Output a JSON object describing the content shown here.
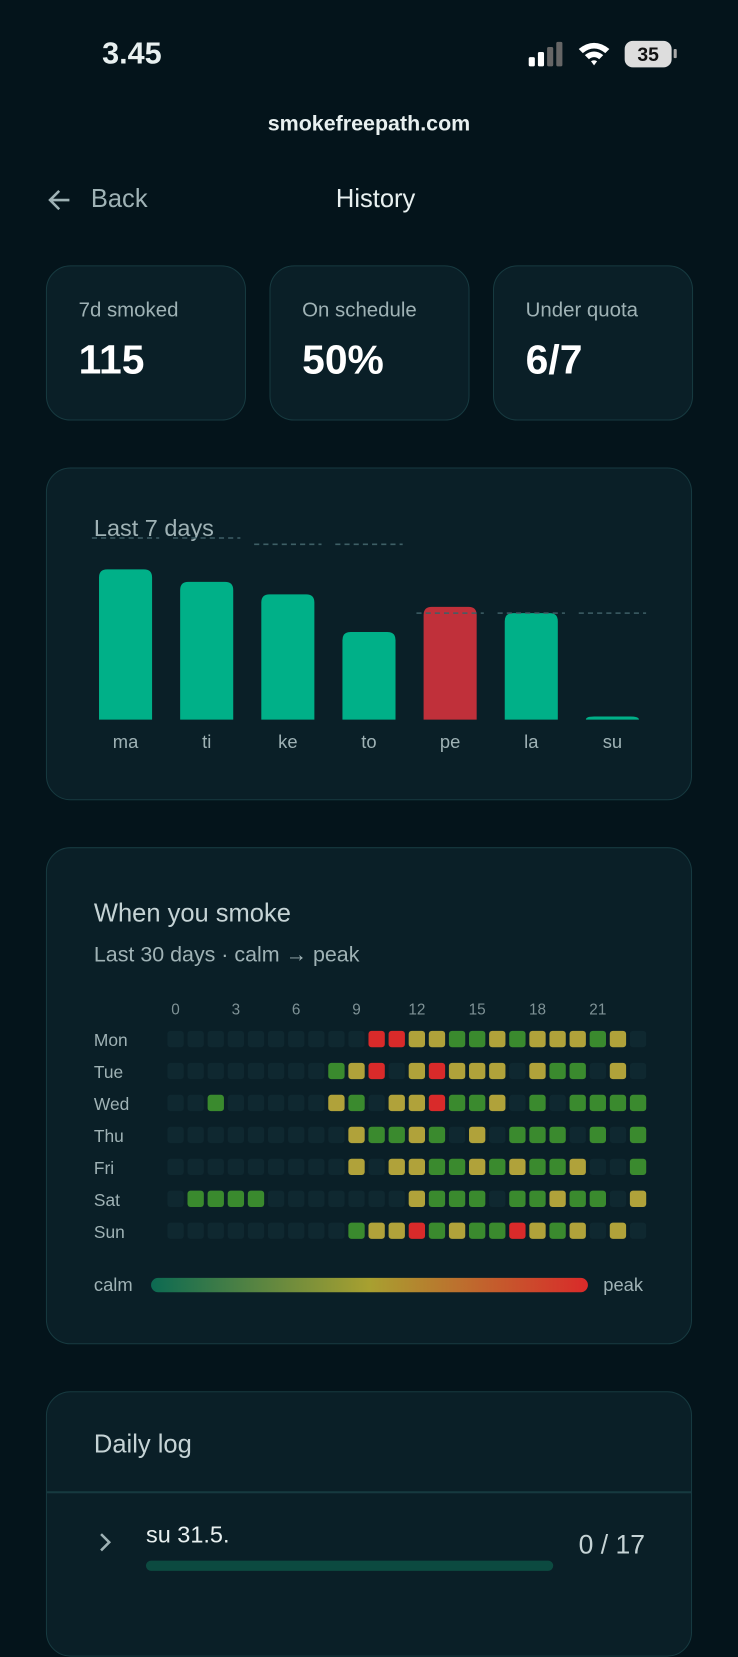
{
  "status_bar": {
    "time": "3.45",
    "battery": "35"
  },
  "url": "smokefreepath.com",
  "nav": {
    "back": "Back",
    "title": "History"
  },
  "stats": [
    {
      "label": "7d smoked",
      "value": "115"
    },
    {
      "label": "On schedule",
      "value": "50%"
    },
    {
      "label": "Under quota",
      "value": "6/7"
    }
  ],
  "chart_data": {
    "type": "bar",
    "title": "Last 7 days",
    "categories": [
      "ma",
      "ti",
      "ke",
      "to",
      "pe",
      "la",
      "su"
    ],
    "values": [
      24,
      22,
      20,
      14,
      18,
      17,
      0
    ],
    "quotas": [
      29,
      29,
      28,
      28,
      17,
      17,
      17
    ],
    "colors": [
      "#00b088",
      "#00b088",
      "#00b088",
      "#00b088",
      "#c0303a",
      "#00b088",
      "#00b088"
    ],
    "ylim": [
      0,
      30
    ]
  },
  "heatmap": {
    "title": "When you smoke",
    "subtitle": "Last 30 days · calm → peak",
    "hour_labels": [
      0,
      3,
      6,
      9,
      12,
      15,
      18,
      21
    ],
    "rows": [
      "Mon",
      "Tue",
      "Wed",
      "Thu",
      "Fri",
      "Sat",
      "Sun"
    ],
    "level_colors": [
      "#0f2830",
      "#3a8a2e",
      "#b0a23a",
      "#d92a2a"
    ],
    "levels": [
      [
        0,
        0,
        0,
        0,
        0,
        0,
        0,
        0,
        0,
        0,
        3,
        3,
        2,
        2,
        1,
        1,
        2,
        1,
        2,
        2,
        2,
        1,
        2,
        0
      ],
      [
        0,
        0,
        0,
        0,
        0,
        0,
        0,
        0,
        1,
        2,
        3,
        0,
        2,
        3,
        2,
        2,
        2,
        0,
        2,
        1,
        1,
        0,
        2,
        0
      ],
      [
        0,
        0,
        1,
        0,
        0,
        0,
        0,
        0,
        2,
        1,
        0,
        2,
        2,
        3,
        1,
        1,
        2,
        0,
        1,
        0,
        1,
        1,
        1,
        1
      ],
      [
        0,
        0,
        0,
        0,
        0,
        0,
        0,
        0,
        0,
        2,
        1,
        1,
        2,
        1,
        0,
        2,
        0,
        1,
        1,
        1,
        0,
        1,
        0,
        1
      ],
      [
        0,
        0,
        0,
        0,
        0,
        0,
        0,
        0,
        0,
        2,
        0,
        2,
        2,
        1,
        1,
        2,
        1,
        2,
        1,
        1,
        2,
        0,
        0,
        1
      ],
      [
        0,
        1,
        1,
        1,
        1,
        0,
        0,
        0,
        0,
        0,
        0,
        0,
        2,
        1,
        1,
        1,
        0,
        1,
        1,
        2,
        1,
        1,
        0,
        2
      ],
      [
        0,
        0,
        0,
        0,
        0,
        0,
        0,
        0,
        0,
        1,
        2,
        2,
        3,
        1,
        2,
        1,
        1,
        3,
        2,
        1,
        2,
        0,
        2,
        0
      ]
    ],
    "legend_low": "calm",
    "legend_high": "peak"
  },
  "daily_log": {
    "title": "Daily log",
    "rows": [
      {
        "date": "su 31.5.",
        "count": "0 / 17"
      }
    ]
  }
}
